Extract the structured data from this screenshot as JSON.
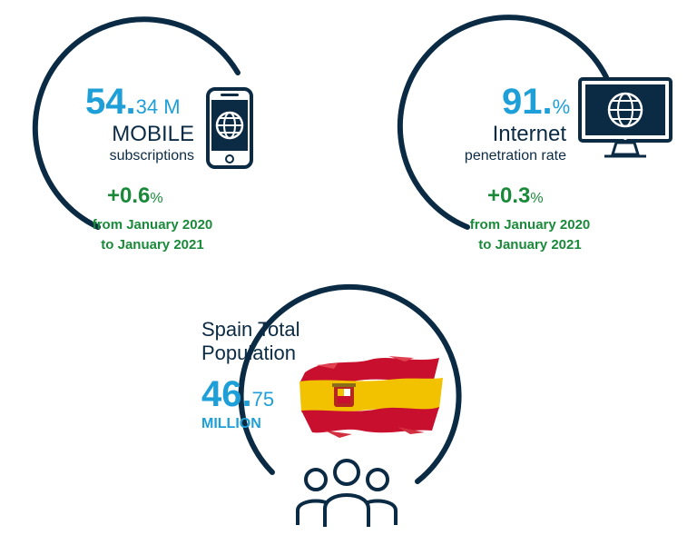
{
  "mobile": {
    "value_main": "54.",
    "value_rest": "34 M",
    "label_big": "MOBILE",
    "label_small": "subscriptions",
    "change_sign": "+",
    "change_value": "0.6",
    "change_unit": "%",
    "period_line1": "from January 2020",
    "period_line2": "to January 2021",
    "icon": "smartphone-globe-icon"
  },
  "internet": {
    "value_main": "91.",
    "value_rest": "%",
    "label_big": "Internet",
    "label_small": "penetration rate",
    "change_sign": "+",
    "change_value": "0.3",
    "change_unit": "%",
    "period_line1": "from January 2020",
    "period_line2": "to January 2021",
    "icon": "monitor-globe-icon"
  },
  "population": {
    "title_line1": "Spain Total",
    "title_line2": "Population",
    "value_main": "46.",
    "value_rest": "75",
    "unit": "MILLION",
    "flag_icon": "spain-flag-icon",
    "people_icon": "people-group-icon"
  },
  "colors": {
    "accent_blue": "#1e9fd8",
    "navy": "#0b2b45",
    "green": "#1a8a3a",
    "flag_red": "#c8102e",
    "flag_yellow": "#f2c200"
  }
}
